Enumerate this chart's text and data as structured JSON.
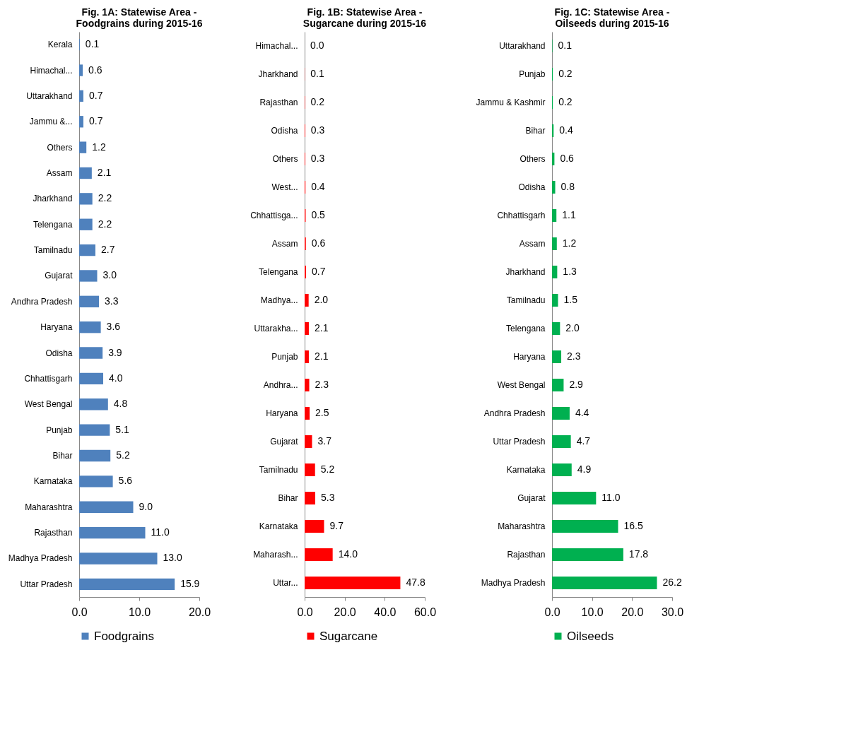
{
  "chart_data": [
    {
      "type": "bar",
      "orientation": "horizontal",
      "title": "Fig. 1A: Statewise Area - Foodgrains during 2015-16",
      "categories": [
        "Kerala",
        "Himachal...",
        "Uttarakhand",
        "Jammu &...",
        "Others",
        "Assam",
        "Jharkhand",
        "Telengana",
        "Tamilnadu",
        "Gujarat",
        "Andhra Pradesh",
        "Haryana",
        "Odisha",
        "Chhattisgarh",
        "West Bengal",
        "Punjab",
        "Bihar",
        "Karnataka",
        "Maharashtra",
        "Rajasthan",
        "Madhya Pradesh",
        "Uttar Pradesh"
      ],
      "series": [
        {
          "name": "Foodgrains",
          "color": "#4f81bd",
          "values": [
            0.1,
            0.6,
            0.7,
            0.7,
            1.2,
            2.1,
            2.2,
            2.2,
            2.7,
            3.0,
            3.3,
            3.6,
            3.9,
            4.0,
            4.8,
            5.1,
            5.2,
            5.6,
            9.0,
            11.0,
            13.0,
            15.9
          ],
          "value_labels": [
            "0.1",
            "0.6",
            "0.7",
            "0.7",
            "1.2",
            "2.1",
            "2.2",
            "2.2",
            "2.7",
            "3.0",
            "3.3",
            "3.6",
            "3.9",
            "4.0",
            "4.8",
            "5.1",
            "5.2",
            "5.6",
            "9.0",
            "11.0",
            "13.0",
            "15.9"
          ]
        }
      ],
      "xlim": [
        0,
        20
      ],
      "xticks": [
        {
          "value": 0,
          "label": "0.0"
        },
        {
          "value": 10,
          "label": "10.0"
        },
        {
          "value": 20,
          "label": "20.0"
        }
      ],
      "legend": "bottom"
    },
    {
      "type": "bar",
      "orientation": "horizontal",
      "title": "Fig. 1B: Statewise Area - Sugarcane during 2015-16",
      "categories": [
        "Himachal...",
        "Jharkhand",
        "Rajasthan",
        "Odisha",
        "Others",
        "West...",
        "Chhattisga...",
        "Assam",
        "Telengana",
        "Madhya...",
        "Uttarakha...",
        "Punjab",
        "Andhra...",
        "Haryana",
        "Gujarat",
        "Tamilnadu",
        "Bihar",
        "Karnataka",
        "Maharash...",
        "Uttar..."
      ],
      "series": [
        {
          "name": "Sugarcane",
          "color": "#ff0000",
          "values": [
            0.0,
            0.1,
            0.2,
            0.3,
            0.3,
            0.4,
            0.5,
            0.6,
            0.7,
            2.0,
            2.1,
            2.1,
            2.3,
            2.5,
            3.7,
            5.2,
            5.3,
            9.7,
            14.0,
            47.8
          ],
          "value_labels": [
            "0.0",
            "0.1",
            "0.2",
            "0.3",
            "0.3",
            "0.4",
            "0.5",
            "0.6",
            "0.7",
            "2.0",
            "2.1",
            "2.1",
            "2.3",
            "2.5",
            "3.7",
            "5.2",
            "5.3",
            "9.7",
            "14.0",
            "47.8"
          ]
        }
      ],
      "xlim": [
        0,
        60
      ],
      "xticks": [
        {
          "value": 0,
          "label": "0.0"
        },
        {
          "value": 20,
          "label": "20.0"
        },
        {
          "value": 40,
          "label": "40.0"
        },
        {
          "value": 60,
          "label": "60.0"
        }
      ],
      "legend": "bottom"
    },
    {
      "type": "bar",
      "orientation": "horizontal",
      "title": "Fig. 1C: Statewise Area - Oilseeds during 2015-16",
      "categories": [
        "Uttarakhand",
        "Punjab",
        "Jammu & Kashmir",
        "Bihar",
        "Others",
        "Odisha",
        "Chhattisgarh",
        "Assam",
        "Jharkhand",
        "Tamilnadu",
        "Telengana",
        "Haryana",
        "West Bengal",
        "Andhra Pradesh",
        "Uttar Pradesh",
        "Karnataka",
        "Gujarat",
        "Maharashtra",
        "Rajasthan",
        "Madhya Pradesh"
      ],
      "series": [
        {
          "name": "Oilseeds",
          "color": "#00b050",
          "values": [
            0.1,
            0.2,
            0.2,
            0.4,
            0.6,
            0.8,
            1.1,
            1.2,
            1.3,
            1.5,
            2.0,
            2.3,
            2.9,
            4.4,
            4.7,
            4.9,
            11.0,
            16.5,
            17.8,
            26.2
          ],
          "value_labels": [
            "0.1",
            "0.2",
            "0.2",
            "0.4",
            "0.6",
            "0.8",
            "1.1",
            "1.2",
            "1.3",
            "1.5",
            "2.0",
            "2.3",
            "2.9",
            "4.4",
            "4.7",
            "4.9",
            "11.0",
            "16.5",
            "17.8",
            "26.2"
          ]
        }
      ],
      "xlim": [
        0,
        30
      ],
      "xticks": [
        {
          "value": 0,
          "label": "0.0"
        },
        {
          "value": 10,
          "label": "10.0"
        },
        {
          "value": 20,
          "label": "20.0"
        },
        {
          "value": 30,
          "label": "30.0"
        }
      ],
      "legend": "bottom"
    }
  ]
}
